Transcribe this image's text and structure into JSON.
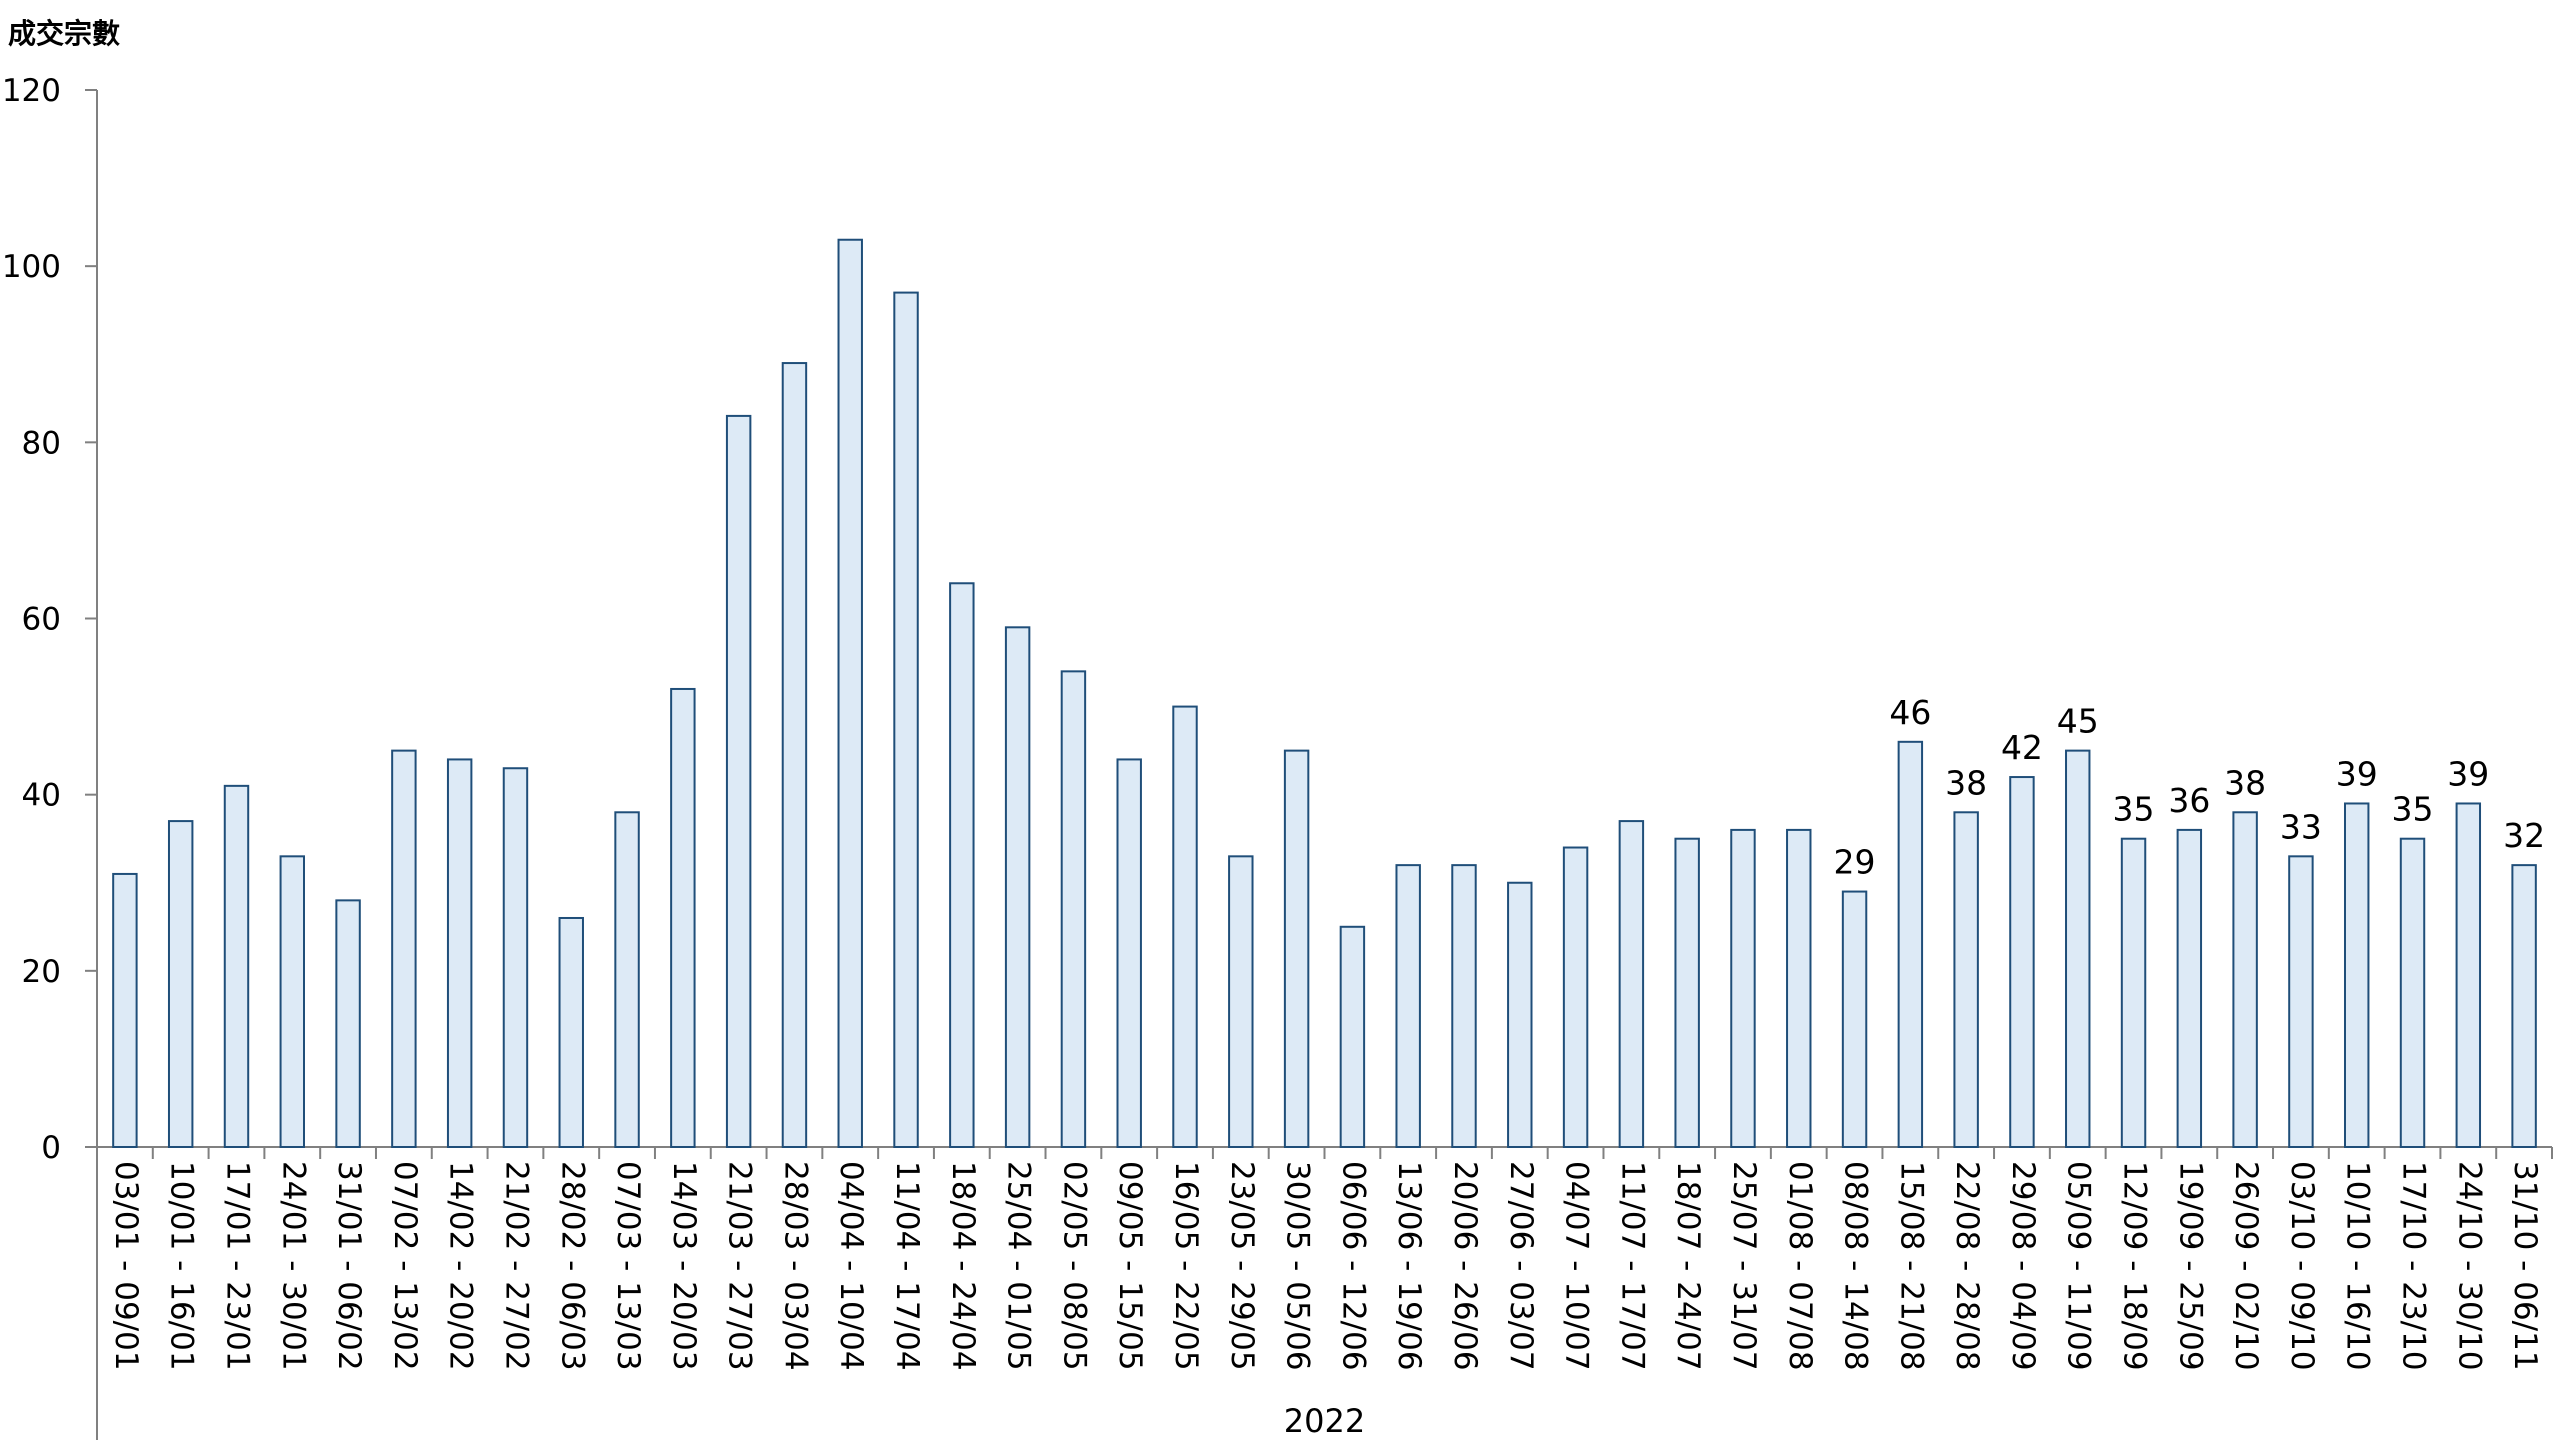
{
  "chart_data": {
    "type": "bar",
    "title": "",
    "ylabel": "成交宗數",
    "xlabel": "",
    "group_label": "2022",
    "ylim": [
      0,
      120
    ],
    "yticks": [
      0,
      20,
      40,
      60,
      80,
      100,
      120
    ],
    "grid": false,
    "categories": [
      "03/01 - 09/01",
      "10/01 - 16/01",
      "17/01 - 23/01",
      "24/01 - 30/01",
      "31/01 - 06/02",
      "07/02 - 13/02",
      "14/02 - 20/02",
      "21/02 - 27/02",
      "28/02 - 06/03",
      "07/03 - 13/03",
      "14/03 - 20/03",
      "21/03 - 27/03",
      "28/03 - 03/04",
      "04/04 - 10/04",
      "11/04 - 17/04",
      "18/04 - 24/04",
      "25/04 - 01/05",
      "02/05 - 08/05",
      "09/05 - 15/05",
      "16/05 - 22/05",
      "23/05 - 29/05",
      "30/05 - 05/06",
      "06/06 - 12/06",
      "13/06 - 19/06",
      "20/06 - 26/06",
      "27/06 - 03/07",
      "04/07 - 10/07",
      "11/07 - 17/07",
      "18/07 - 24/07",
      "25/07 - 31/07",
      "01/08 - 07/08",
      "08/08 - 14/08",
      "15/08 - 21/08",
      "22/08 - 28/08",
      "29/08 - 04/09",
      "05/09 - 11/09",
      "12/09 - 18/09",
      "19/09 - 25/09",
      "26/09 - 02/10",
      "03/10 - 09/10",
      "10/10 - 16/10",
      "17/10 - 23/10",
      "24/10 - 30/10",
      "31/10 - 06/11"
    ],
    "values": [
      31,
      37,
      41,
      33,
      28,
      45,
      44,
      43,
      26,
      38,
      52,
      83,
      89,
      103,
      97,
      64,
      59,
      54,
      44,
      50,
      33,
      45,
      25,
      32,
      32,
      30,
      34,
      37,
      35,
      36,
      36,
      29,
      46,
      38,
      42,
      45,
      35,
      36,
      38,
      33,
      39,
      35,
      39,
      32
    ],
    "data_labels": [
      null,
      null,
      null,
      null,
      null,
      null,
      null,
      null,
      null,
      null,
      null,
      null,
      null,
      null,
      null,
      null,
      null,
      null,
      null,
      null,
      null,
      null,
      null,
      null,
      null,
      null,
      null,
      null,
      null,
      null,
      null,
      "29",
      "46",
      "38",
      "42",
      "45",
      "35",
      "36",
      "38",
      "33",
      "39",
      "35",
      "39",
      "32"
    ],
    "colors": {
      "bar_fill": "#ddeaf6",
      "bar_stroke": "#1f4e79",
      "axis": "#808080"
    }
  }
}
